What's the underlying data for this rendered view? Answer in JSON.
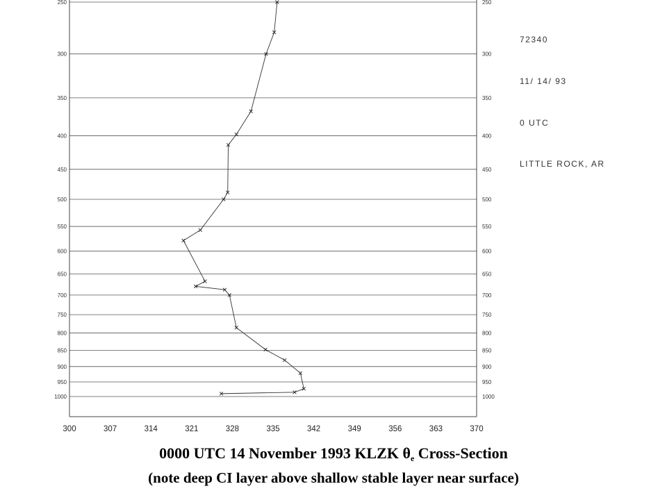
{
  "chart_data": {
    "type": "line",
    "title": "0000 UTC 14 November 1993 KLZK",
    "title_symbol": "θ",
    "title_subscript": "e",
    "title_suffix": "Cross-Section",
    "subtitle": "(note deep CI layer above shallow stable layer near surface)",
    "station_info": [
      "72340",
      "11/ 14/ 93",
      "0 UTC",
      "LITTLE ROCK, AR"
    ],
    "xlim": [
      300,
      370
    ],
    "x_ticks": [
      "300",
      "307",
      "314",
      "321",
      "328",
      "335",
      "342",
      "349",
      "356",
      "363",
      "370"
    ],
    "y_axis": "pressure",
    "y_ticks": [
      "250",
      "300",
      "350",
      "400",
      "450",
      "500",
      "550",
      "600",
      "650",
      "700",
      "750",
      "800",
      "850",
      "900",
      "950",
      "1000"
    ],
    "grid": true,
    "series": [
      {
        "points": [
          {
            "x": 335.7,
            "y": 250
          },
          {
            "x": 335.2,
            "y": 278
          },
          {
            "x": 333.8,
            "y": 300
          },
          {
            "x": 331.2,
            "y": 367
          },
          {
            "x": 328.7,
            "y": 398
          },
          {
            "x": 327.3,
            "y": 413
          },
          {
            "x": 327.2,
            "y": 488
          },
          {
            "x": 326.5,
            "y": 500
          },
          {
            "x": 322.5,
            "y": 557
          },
          {
            "x": 319.6,
            "y": 578
          },
          {
            "x": 323.3,
            "y": 667
          },
          {
            "x": 321.7,
            "y": 679
          },
          {
            "x": 326.7,
            "y": 687
          },
          {
            "x": 327.5,
            "y": 700
          },
          {
            "x": 328.7,
            "y": 785
          },
          {
            "x": 333.7,
            "y": 848
          },
          {
            "x": 337.0,
            "y": 880
          },
          {
            "x": 339.7,
            "y": 921
          },
          {
            "x": 340.3,
            "y": 973
          },
          {
            "x": 338.7,
            "y": 985
          },
          {
            "x": 326.1,
            "y": 990
          }
        ]
      }
    ]
  }
}
